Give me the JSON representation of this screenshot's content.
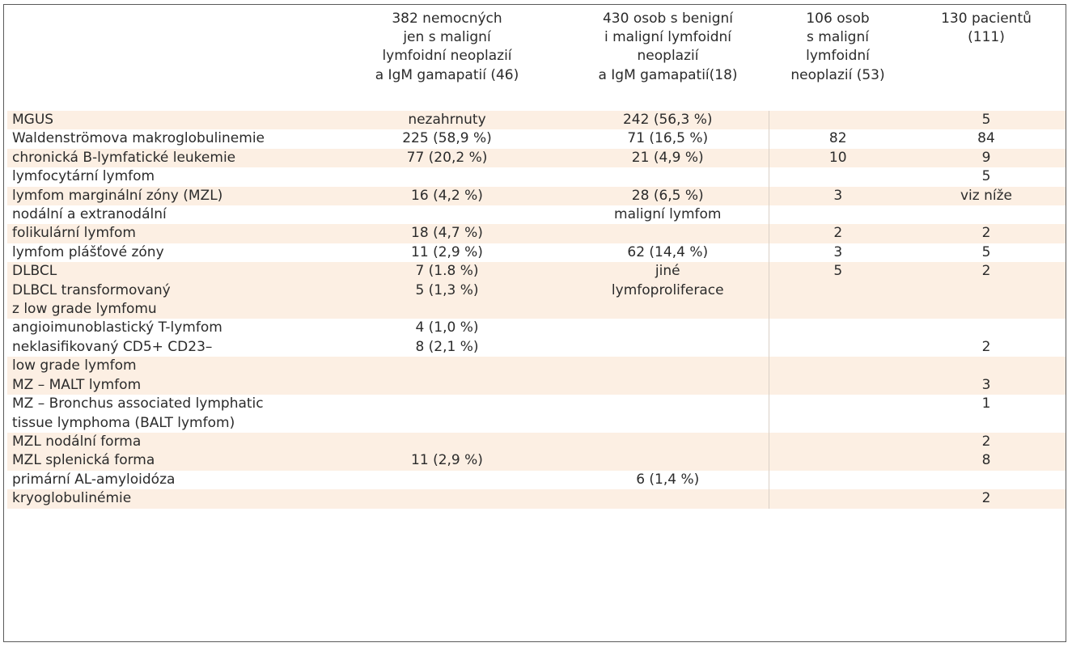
{
  "headers": [
    "",
    "382 nemocných\njen s maligní\nlymfoidní neoplazií\na IgM gamapatií (46)",
    "430 osob s benigní\ni maligní lymfoidní\nneoplazií\na IgM gamapatií(18)",
    "106 osob\ns maligní\nlymfoidní\nneoplazií (53)",
    "130 pacientů\n(111)"
  ],
  "rows": [
    [
      "MGUS",
      "nezahrnuty",
      "242 (56,3 %)",
      "",
      "5"
    ],
    [
      "Waldenströmova makroglobulinemie",
      "225 (58,9 %)",
      "71 (16,5 %)",
      "82",
      "84"
    ],
    [
      "chronická B-lymfatické leukemie",
      "77 (20,2 %)",
      "21 (4,9 %)",
      "10",
      "9"
    ],
    [
      "lymfocytární lymfom",
      "",
      "",
      "",
      "5"
    ],
    [
      "lymfom marginální zóny (MZL)",
      "16 (4,2 %)",
      "28 (6,5 %)",
      "3",
      "viz níže"
    ],
    [
      "nodální a extranodální",
      "",
      "maligní lymfom",
      "",
      ""
    ],
    [
      "folikulární lymfom",
      "18 (4,7 %)",
      "",
      "2",
      "2"
    ],
    [
      "lymfom plášťové zóny",
      "11 (2,9 %)",
      "62 (14,4 %)",
      "3",
      "5"
    ],
    [
      "DLBCL",
      "7 (1.8 %)",
      "jiné",
      "5",
      "2"
    ],
    [
      "DLBCL transformovaný",
      "5 (1,3 %)",
      "lymfoproliferace",
      "",
      ""
    ],
    [
      "z low grade lymfomu",
      "",
      "",
      "",
      ""
    ],
    [
      "angioimunoblastický T-lymfom",
      "4 (1,0 %)",
      "",
      "",
      ""
    ],
    [
      "neklasifikovaný CD5+ CD23–",
      "8 (2,1 %)",
      "",
      "",
      "2"
    ],
    [
      "low grade lymfom",
      "",
      "",
      "",
      ""
    ],
    [
      "MZ – MALT lymfom",
      "",
      "",
      "",
      "3"
    ],
    [
      "MZ – Bronchus associated lymphatic",
      "",
      "",
      "",
      "1"
    ],
    [
      "tissue lymphoma (BALT lymfom)",
      "",
      "",
      "",
      ""
    ],
    [
      "MZL nodální forma",
      "",
      "",
      "",
      "2"
    ],
    [
      "MZL splenická forma",
      "11 (2,9 %)",
      "",
      "",
      "8"
    ],
    [
      "primární AL-amyloidóza",
      "",
      "6 (1,4 %)",
      "",
      ""
    ],
    [
      "kryoglobulinémie",
      "",
      "",
      "",
      "2"
    ]
  ],
  "shaded_rows": [
    0,
    2,
    4,
    6,
    8,
    9,
    10,
    13,
    14,
    17,
    18,
    20
  ]
}
